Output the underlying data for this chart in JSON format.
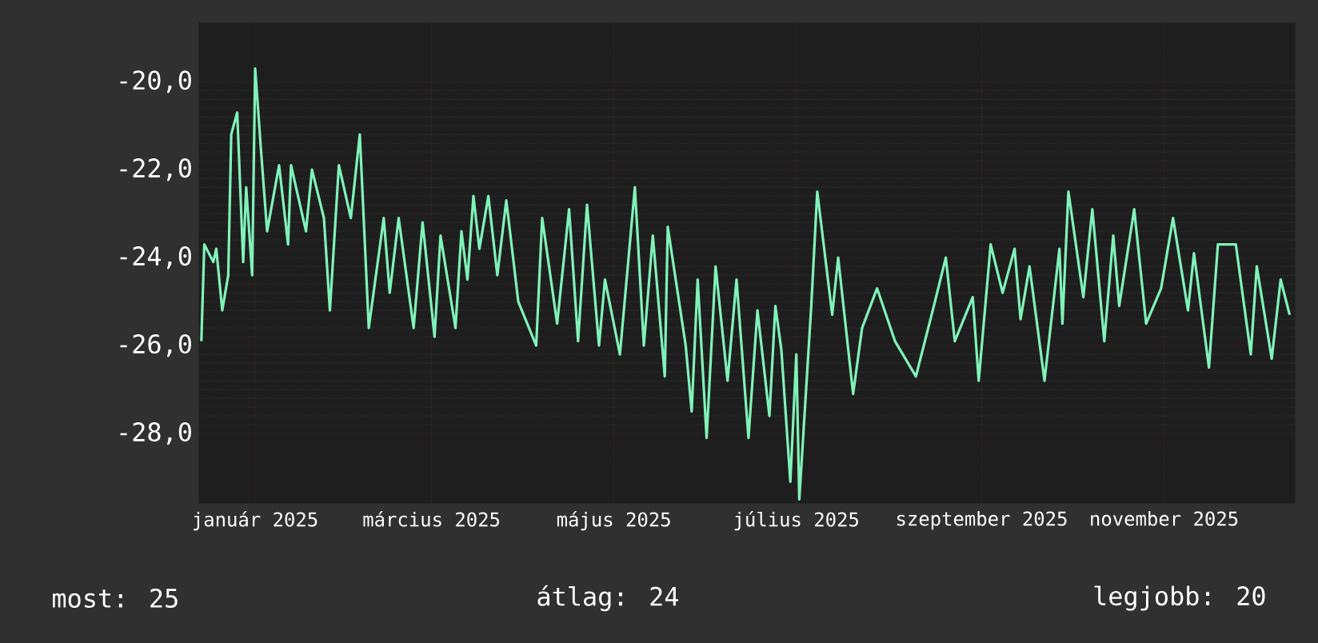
{
  "chart_data": {
    "type": "line",
    "x": [
      "2024-12-14",
      "2024-12-15",
      "2024-12-18",
      "2024-12-19",
      "2024-12-21",
      "2024-12-23",
      "2024-12-24",
      "2024-12-26",
      "2024-12-28",
      "2024-12-29",
      "2024-12-31",
      "2025-01-01",
      "2025-01-03",
      "2025-01-05",
      "2025-01-09",
      "2025-01-12",
      "2025-01-13",
      "2025-01-18",
      "2025-01-20",
      "2025-01-24",
      "2025-01-26",
      "2025-01-29",
      "2025-02-02",
      "2025-02-05",
      "2025-02-08",
      "2025-02-13",
      "2025-02-15",
      "2025-02-18",
      "2025-02-23",
      "2025-02-26",
      "2025-03-02",
      "2025-03-04",
      "2025-03-09",
      "2025-03-11",
      "2025-03-13",
      "2025-03-15",
      "2025-03-17",
      "2025-03-20",
      "2025-03-23",
      "2025-03-26",
      "2025-03-30",
      "2025-04-05",
      "2025-04-07",
      "2025-04-12",
      "2025-04-16",
      "2025-04-19",
      "2025-04-22",
      "2025-04-26",
      "2025-04-28",
      "2025-05-03",
      "2025-05-08",
      "2025-05-11",
      "2025-05-14",
      "2025-05-18",
      "2025-05-19",
      "2025-05-25",
      "2025-05-27",
      "2025-05-29",
      "2025-06-01",
      "2025-06-04",
      "2025-06-08",
      "2025-06-11",
      "2025-06-15",
      "2025-06-18",
      "2025-06-22",
      "2025-06-24",
      "2025-06-26",
      "2025-06-29",
      "2025-07-01",
      "2025-07-02",
      "2025-07-06",
      "2025-07-08",
      "2025-07-13",
      "2025-07-15",
      "2025-07-20",
      "2025-07-23",
      "2025-07-28",
      "2025-08-03",
      "2025-08-10",
      "2025-08-16",
      "2025-08-20",
      "2025-08-23",
      "2025-08-29",
      "2025-08-31",
      "2025-09-04",
      "2025-09-08",
      "2025-09-12",
      "2025-09-14",
      "2025-09-17",
      "2025-09-22",
      "2025-09-27",
      "2025-09-28",
      "2025-09-30",
      "2025-10-05",
      "2025-10-08",
      "2025-10-12",
      "2025-10-15",
      "2025-10-17",
      "2025-10-22",
      "2025-10-26",
      "2025-10-31",
      "2025-11-04",
      "2025-11-09",
      "2025-11-11",
      "2025-11-16",
      "2025-11-19",
      "2025-11-25",
      "2025-11-30",
      "2025-12-02",
      "2025-12-07",
      "2025-12-10",
      "2025-12-13"
    ],
    "series": [
      {
        "color": "#80f2b8",
        "values": [
          -25.9,
          -23.7,
          -24.1,
          -23.8,
          -25.2,
          -24.4,
          -21.2,
          -20.7,
          -24.1,
          -22.4,
          -24.4,
          -19.7,
          -21.6,
          -23.4,
          -21.9,
          -23.7,
          -21.9,
          -23.4,
          -22.0,
          -23.1,
          -25.2,
          -21.9,
          -23.1,
          -21.2,
          -25.6,
          -23.1,
          -24.8,
          -23.1,
          -25.6,
          -23.2,
          -25.8,
          -23.5,
          -25.6,
          -23.4,
          -24.5,
          -22.6,
          -23.8,
          -22.6,
          -24.4,
          -22.7,
          -25.0,
          -26.0,
          -23.1,
          -25.5,
          -22.9,
          -25.9,
          -22.8,
          -26.0,
          -24.5,
          -26.2,
          -22.4,
          -26.0,
          -23.5,
          -26.7,
          -23.3,
          -26.0,
          -27.5,
          -24.5,
          -28.1,
          -24.2,
          -26.8,
          -24.5,
          -28.1,
          -25.2,
          -27.6,
          -25.1,
          -26.1,
          -29.1,
          -26.2,
          -29.5,
          -25.1,
          -22.5,
          -25.3,
          -24.0,
          -27.1,
          -25.6,
          -24.7,
          -25.9,
          -26.7,
          -25.1,
          -24.0,
          -25.9,
          -24.9,
          -26.8,
          -23.7,
          -24.8,
          -23.8,
          -25.4,
          -24.2,
          -26.8,
          -23.8,
          -25.5,
          -22.5,
          -24.9,
          -22.9,
          -25.9,
          -23.5,
          -25.1,
          -22.9,
          -25.5,
          -24.7,
          -23.1,
          -25.2,
          -23.9,
          -26.5,
          -23.7,
          -23.7,
          -26.2,
          -24.2,
          -26.3,
          -24.5,
          -25.3
        ]
      }
    ],
    "xlim": [
      "2024-12-13",
      "2025-12-15"
    ],
    "xticks": [
      {
        "value": "2025-01-01",
        "label": "január 2025"
      },
      {
        "value": "2025-03-01",
        "label": "március 2025"
      },
      {
        "value": "2025-05-01",
        "label": "május 2025"
      },
      {
        "value": "2025-07-01",
        "label": "július 2025"
      },
      {
        "value": "2025-09-01",
        "label": "szeptember 2025"
      },
      {
        "value": "2025-11-01",
        "label": "november 2025"
      }
    ],
    "ylim": [
      -29.6,
      -18.65
    ],
    "yticks": [
      {
        "value": -20,
        "label": "-20,0"
      },
      {
        "value": -22,
        "label": "-22,0"
      },
      {
        "value": -24,
        "label": "-24,0"
      },
      {
        "value": -26,
        "label": "-26,0"
      },
      {
        "value": -28,
        "label": "-28,0"
      }
    ],
    "grid": true,
    "marker": "none",
    "annotations": [
      "most: 25",
      "átlag: 24",
      "legjobb: 20"
    ]
  }
}
